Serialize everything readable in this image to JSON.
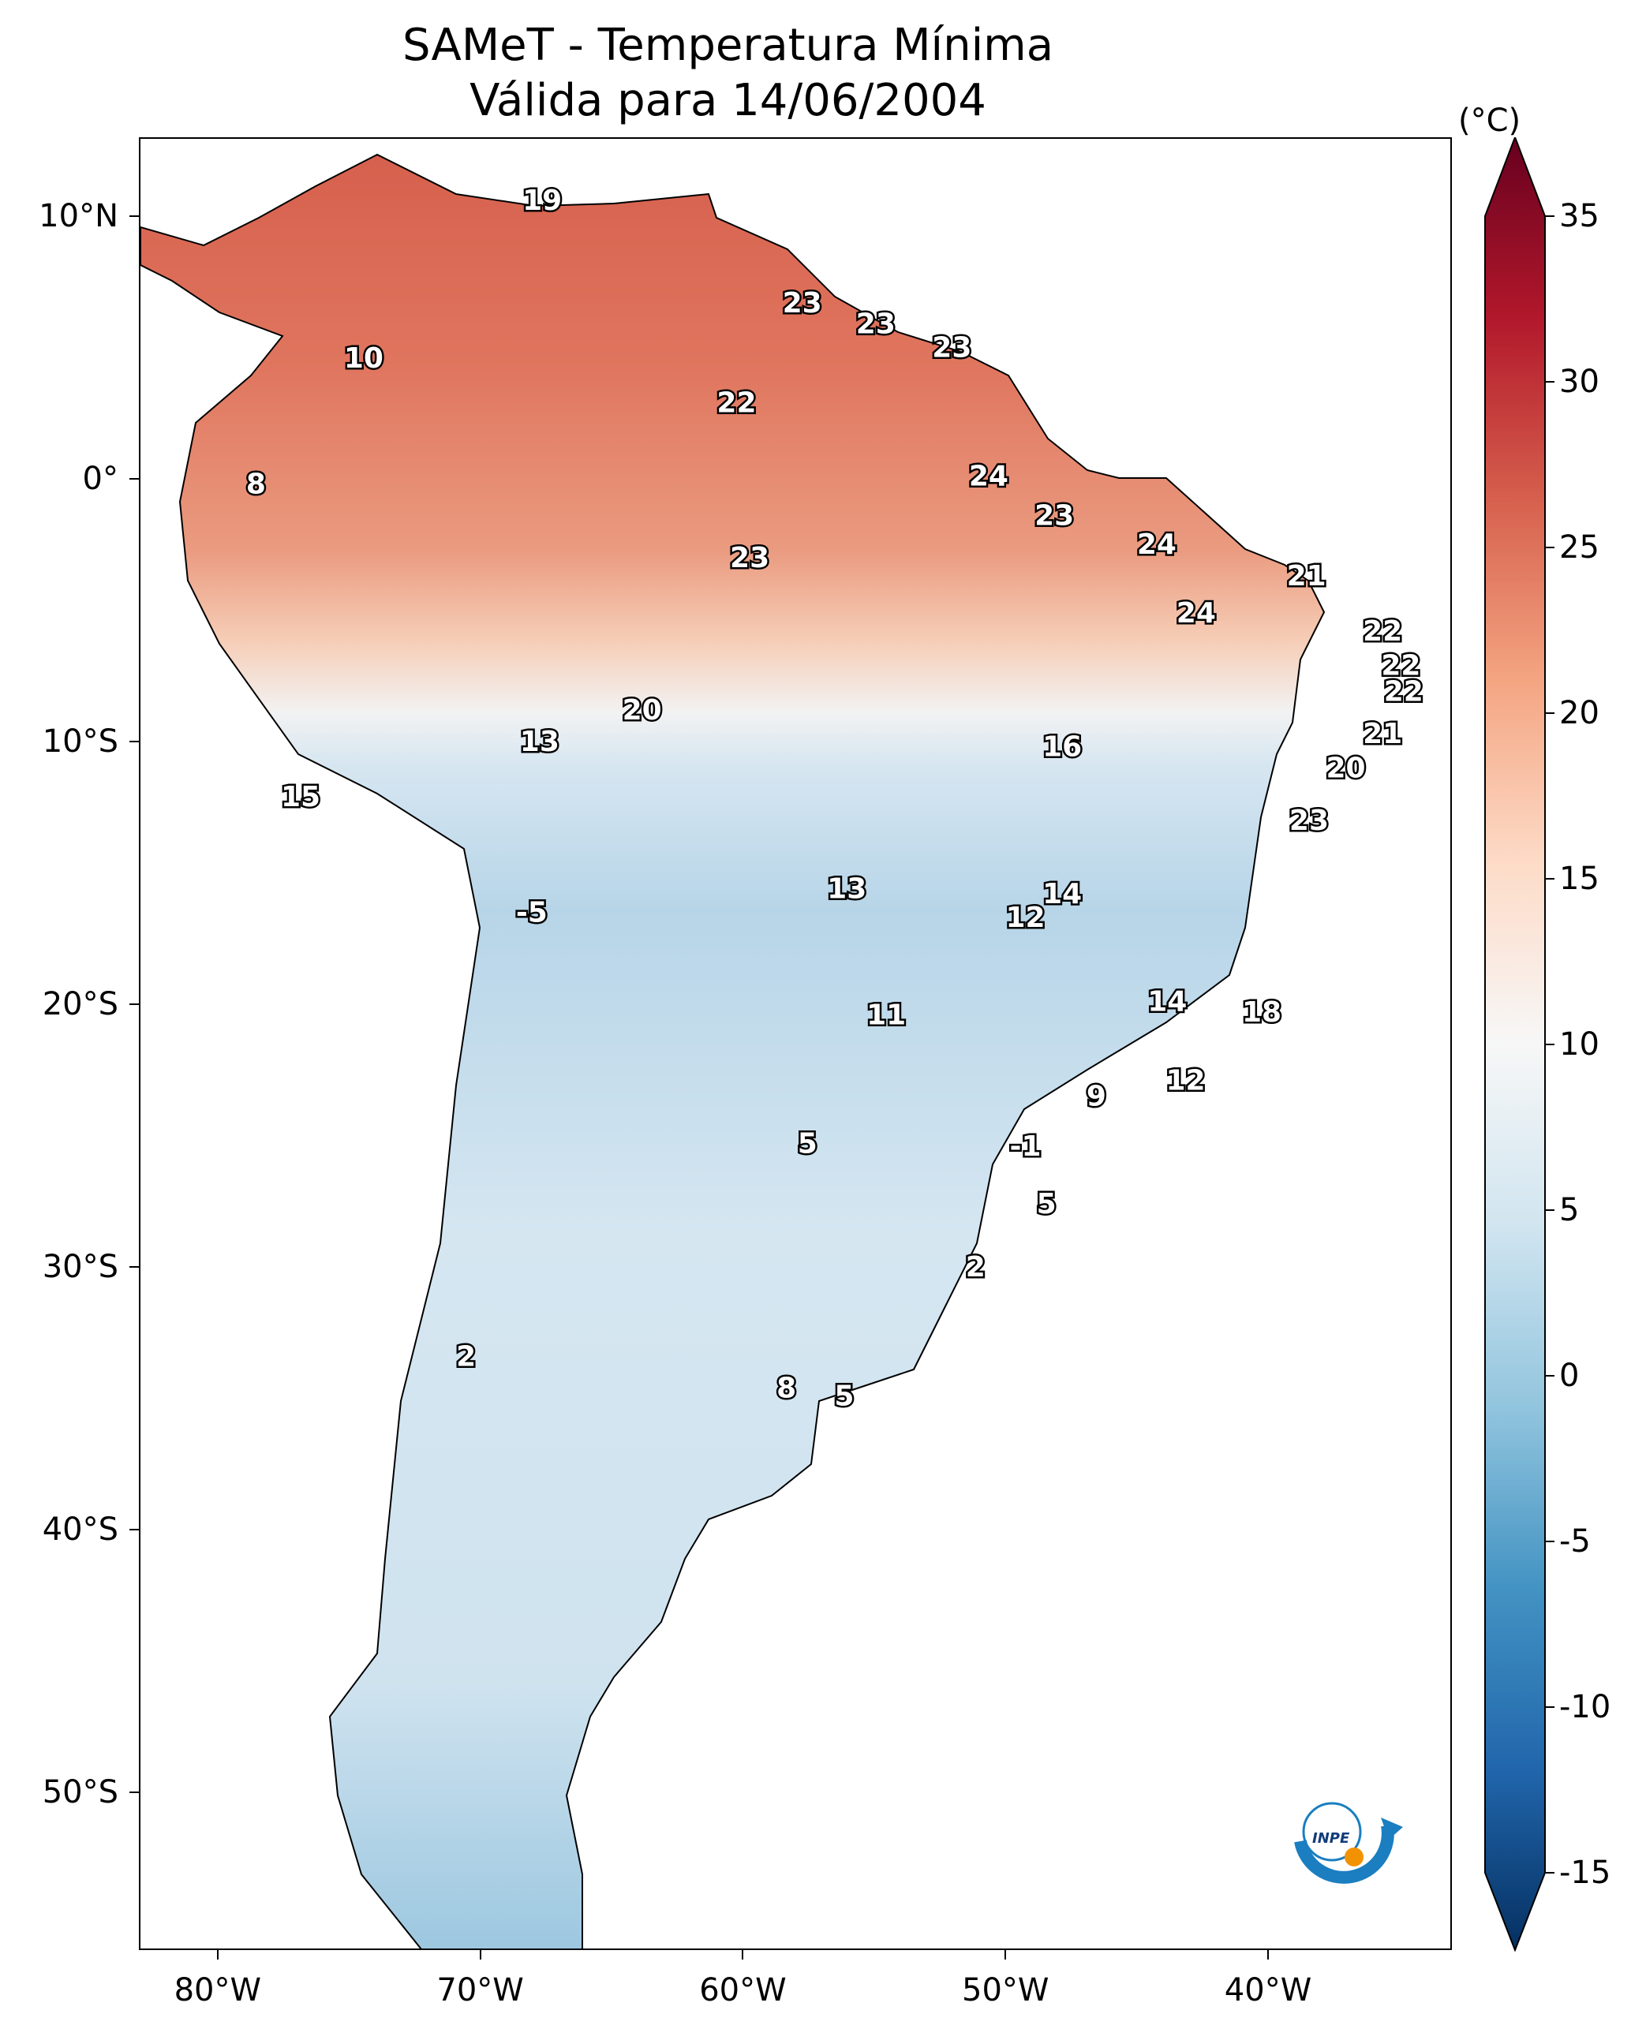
{
  "title_line1": "SAMeT - Temperatura Mínima",
  "title_line2": "Válida para 14/06/2004",
  "colorbar": {
    "unit": "(°C)",
    "ticks": [
      "35",
      "30",
      "25",
      "20",
      "15",
      "10",
      "5",
      "0",
      "-5",
      "-10",
      "-15"
    ],
    "tick_values": [
      35,
      30,
      25,
      20,
      15,
      10,
      5,
      0,
      -5,
      -10,
      -15
    ],
    "range": [
      -15,
      35
    ],
    "colors": [
      "#053061",
      "#2166ac",
      "#4393c3",
      "#92c5de",
      "#d1e5f0",
      "#f7f7f7",
      "#fddbc7",
      "#f4a582",
      "#d6604d",
      "#b2182b",
      "#67001f"
    ]
  },
  "axes": {
    "lon_labels": [
      "80°W",
      "70°W",
      "60°W",
      "50°W",
      "40°W"
    ],
    "lon_values": [
      -80,
      -70,
      -60,
      -50,
      -40
    ],
    "lat_labels": [
      "10°N",
      "0°",
      "10°S",
      "20°S",
      "30°S",
      "40°S",
      "50°S"
    ],
    "lat_values": [
      10,
      0,
      -10,
      -20,
      -30,
      -40,
      -50
    ],
    "lon_range": [
      -83,
      -33
    ],
    "lat_range": [
      -56,
      13
    ]
  },
  "station_labels": [
    {
      "text": "19",
      "lon": -67.7,
      "lat": 10.6
    },
    {
      "text": "10",
      "lon": -74.5,
      "lat": 4.6
    },
    {
      "text": "23",
      "lon": -57.8,
      "lat": 6.7
    },
    {
      "text": "23",
      "lon": -55.0,
      "lat": 5.9
    },
    {
      "text": "23",
      "lon": -52.1,
      "lat": 5.0
    },
    {
      "text": "22",
      "lon": -60.3,
      "lat": 2.9
    },
    {
      "text": "8",
      "lon": -78.6,
      "lat": -0.2
    },
    {
      "text": "24",
      "lon": -50.7,
      "lat": 0.1
    },
    {
      "text": "23",
      "lon": -48.2,
      "lat": -1.4
    },
    {
      "text": "23",
      "lon": -59.8,
      "lat": -3.0
    },
    {
      "text": "24",
      "lon": -44.3,
      "lat": -2.5
    },
    {
      "text": "21",
      "lon": -38.6,
      "lat": -3.7
    },
    {
      "text": "24",
      "lon": -42.8,
      "lat": -5.1
    },
    {
      "text": "22",
      "lon": -35.7,
      "lat": -5.8
    },
    {
      "text": "22",
      "lon": -35.0,
      "lat": -7.1
    },
    {
      "text": "22",
      "lon": -34.9,
      "lat": -8.1
    },
    {
      "text": "20",
      "lon": -63.9,
      "lat": -8.8
    },
    {
      "text": "13",
      "lon": -67.8,
      "lat": -10.0
    },
    {
      "text": "16",
      "lon": -47.9,
      "lat": -10.2
    },
    {
      "text": "21",
      "lon": -35.7,
      "lat": -9.7
    },
    {
      "text": "20",
      "lon": -37.1,
      "lat": -11.0
    },
    {
      "text": "15",
      "lon": -76.9,
      "lat": -12.1
    },
    {
      "text": "23",
      "lon": -38.5,
      "lat": -13.0
    },
    {
      "text": "13",
      "lon": -56.1,
      "lat": -15.6
    },
    {
      "text": "14",
      "lon": -47.9,
      "lat": -15.8
    },
    {
      "text": "12",
      "lon": -49.3,
      "lat": -16.7
    },
    {
      "text": "-5",
      "lon": -68.1,
      "lat": -16.5
    },
    {
      "text": "14",
      "lon": -43.9,
      "lat": -19.9
    },
    {
      "text": "18",
      "lon": -40.3,
      "lat": -20.3
    },
    {
      "text": "11",
      "lon": -54.6,
      "lat": -20.4
    },
    {
      "text": "12",
      "lon": -43.2,
      "lat": -22.9
    },
    {
      "text": "9",
      "lon": -46.6,
      "lat": -23.5
    },
    {
      "text": "5",
      "lon": -57.6,
      "lat": -25.3
    },
    {
      "text": "-1",
      "lon": -49.3,
      "lat": -25.4
    },
    {
      "text": "5",
      "lon": -48.5,
      "lat": -27.6
    },
    {
      "text": "2",
      "lon": -51.2,
      "lat": -30.0
    },
    {
      "text": "2",
      "lon": -70.6,
      "lat": -33.4
    },
    {
      "text": "8",
      "lon": -58.4,
      "lat": -34.6
    },
    {
      "text": "5",
      "lon": -56.2,
      "lat": -34.9
    }
  ],
  "logo_text": "INPE"
}
